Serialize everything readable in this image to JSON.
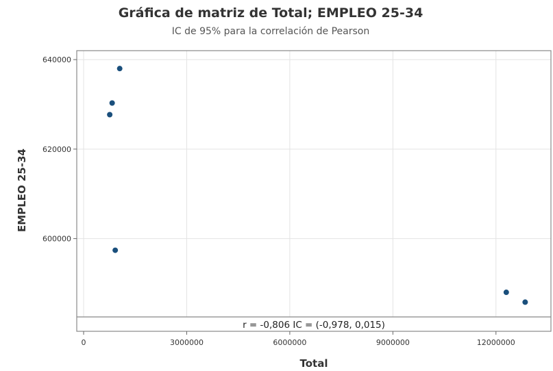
{
  "chart_data": {
    "type": "scatter",
    "title": "Gráfica de matriz de Total; EMPLEO 25-34",
    "subtitle": "IC de 95% para la correlación de Pearson",
    "xlabel": "Total",
    "ylabel": "EMPLEO 25-34",
    "x_ticks": [
      {
        "value": 0,
        "label": "0"
      },
      {
        "value": 3000000,
        "label": "3000000"
      },
      {
        "value": 6000000,
        "label": "6000000"
      },
      {
        "value": 9000000,
        "label": "9000000"
      },
      {
        "value": 12000000,
        "label": "12000000"
      }
    ],
    "y_ticks": [
      {
        "value": 600000,
        "label": "600000"
      },
      {
        "value": 620000,
        "label": "620000"
      },
      {
        "value": 640000,
        "label": "640000"
      }
    ],
    "xlim": [
      -200000,
      13600000
    ],
    "ylim": [
      582500,
      642000
    ],
    "grid": true,
    "points": [
      {
        "x": 1050000,
        "y": 638000
      },
      {
        "x": 830000,
        "y": 630300
      },
      {
        "x": 760000,
        "y": 627700
      },
      {
        "x": 920000,
        "y": 597400
      },
      {
        "x": 12300000,
        "y": 588000
      },
      {
        "x": 12850000,
        "y": 585800
      }
    ],
    "marker_color": "#1a4f7c",
    "annotation": "r = -0,806  IC = (-0,978, 0,015)"
  }
}
